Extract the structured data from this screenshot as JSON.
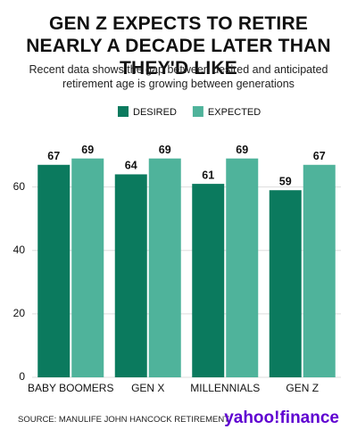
{
  "chart_data": {
    "type": "grouped_bar",
    "title": "GEN Z EXPECTS TO RETIRE NEARLY A DECADE LATER THAN THEY'D LIKE",
    "subtitle": "Recent data shows the gap between desired and anticipated retirement age is growing between generations",
    "categories": [
      "BABY BOOMERS",
      "GEN X",
      "MILLENNIALS",
      "GEN Z"
    ],
    "series": [
      {
        "name": "DESIRED",
        "color": "#0b7a5e",
        "values": [
          67,
          64,
          61,
          59
        ]
      },
      {
        "name": "EXPECTED",
        "color": "#4fb39b",
        "values": [
          69,
          69,
          69,
          67
        ]
      }
    ],
    "ylim": [
      0,
      72
    ],
    "yticks": [
      0,
      20,
      40,
      60
    ],
    "grid": true,
    "source": "SOURCE: MANULIFE JOHN HANCOCK RETIREMENT",
    "logo": "yahoo!finance"
  }
}
